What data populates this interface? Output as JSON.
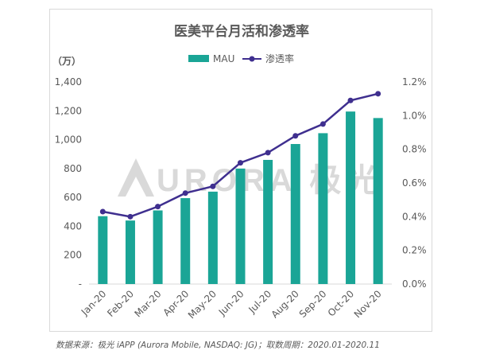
{
  "source_note": "数据来源：极光 iAPP (Aurora Mobile, NASDAQ: JG)；取数周期：2020.01-2020.11",
  "watermark": "URORA 极光",
  "colors": {
    "bar": "#1aa596",
    "line": "#3f2f8f",
    "watermark": "#d9d9d9"
  },
  "chart_data": {
    "type": "bar",
    "title": "医美平台月活和渗透率",
    "y_unit_label": "（万）",
    "categories": [
      "Jan-20",
      "Feb-20",
      "Mar-20",
      "Apr-20",
      "May-20",
      "Jun-20",
      "Jul-20",
      "Aug-20",
      "Sep-20",
      "Oct-20",
      "Nov-20"
    ],
    "series": [
      {
        "name": "MAU",
        "type": "bar",
        "axis": "left",
        "values": [
          470,
          440,
          510,
          595,
          640,
          800,
          860,
          970,
          1045,
          1195,
          1150
        ]
      },
      {
        "name": "渗透率",
        "type": "line",
        "axis": "right",
        "values": [
          0.43,
          0.4,
          0.46,
          0.54,
          0.58,
          0.72,
          0.78,
          0.88,
          0.95,
          1.09,
          1.13
        ]
      }
    ],
    "ylim_left": [
      0,
      1400
    ],
    "yticks_left": [
      "-",
      "200",
      "400",
      "600",
      "800",
      "1,000",
      "1,200",
      "1,400"
    ],
    "ylim_right": [
      0,
      1.2
    ],
    "yticks_right": [
      "0.0%",
      "0.2%",
      "0.4%",
      "0.6%",
      "0.8%",
      "1.0%",
      "1.2%"
    ],
    "legend_position": "top-center",
    "grid": false
  }
}
